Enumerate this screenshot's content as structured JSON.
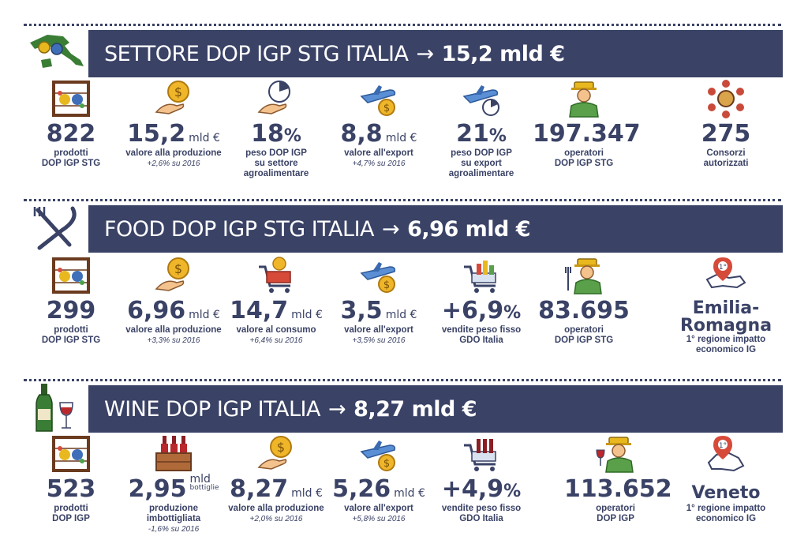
{
  "sections": [
    {
      "id": "settore",
      "title": "SETTORE DOP IGP STG ITALIA",
      "arrow": "→",
      "total": "15,2 mld €",
      "icon": "italy-map-icon",
      "items": [
        {
          "icon": "abacus-icon",
          "value": "822",
          "unit": "",
          "label": "prodotti",
          "label2": "DOP IGP STG",
          "label3": "",
          "sub": ""
        },
        {
          "icon": "coin-hand-icon",
          "value": "15,2",
          "unit": "mld €",
          "label": "valore alla produzione",
          "label2": "",
          "label3": "",
          "sub": "+2,6% su 2016"
        },
        {
          "icon": "pie-hand-icon",
          "value": "18",
          "unit": "%",
          "label": "peso DOP IGP",
          "label2": "su settore",
          "label3": "agroalimentare",
          "sub": ""
        },
        {
          "icon": "plane-coin-icon",
          "value": "8,8",
          "unit": "mld €",
          "label": "valore all'export",
          "label2": "",
          "label3": "",
          "sub": "+4,7% su 2016"
        },
        {
          "icon": "plane-pie-icon",
          "value": "21",
          "unit": "%",
          "label": "peso DOP IGP",
          "label2": "su export",
          "label3": "agroalimentare",
          "sub": ""
        },
        {
          "icon": "farmer-icon",
          "value": "197.347",
          "unit": "",
          "label": "operatori",
          "label2": "DOP IGP STG",
          "label3": "",
          "sub": ""
        },
        {
          "icon": "consortium-icon",
          "value": "275",
          "unit": "",
          "label": "Consorzi",
          "label2": "autorizzati",
          "label3": "",
          "sub": ""
        }
      ]
    },
    {
      "id": "food",
      "title": "FOOD DOP IGP STG ITALIA",
      "arrow": "→",
      "total": "6,96 mld €",
      "icon": "fork-knife-icon",
      "items": [
        {
          "icon": "abacus-icon",
          "value": "299",
          "unit": "",
          "label": "prodotti",
          "label2": "DOP IGP STG",
          "label3": "",
          "sub": ""
        },
        {
          "icon": "coin-hand-icon",
          "value": "6,96",
          "unit": "mld €",
          "label": "valore alla produzione",
          "label2": "",
          "label3": "",
          "sub": "+3,3% su 2016"
        },
        {
          "icon": "cart-coin-icon",
          "value": "14,7",
          "unit": "mld €",
          "label": "valore al consumo",
          "label2": "",
          "label3": "",
          "sub": "+6,4% su 2016"
        },
        {
          "icon": "plane-coin-icon",
          "value": "3,5",
          "unit": "mld €",
          "label": "valore all'export",
          "label2": "",
          "label3": "",
          "sub": "+3,5% su 2016"
        },
        {
          "icon": "grocery-cart-icon",
          "value": "+6,9",
          "unit": "%",
          "label": "vendite peso fisso",
          "label2": "GDO Italia",
          "label3": "",
          "sub": ""
        },
        {
          "icon": "farmer-fork-icon",
          "value": "83.695",
          "unit": "",
          "label": "operatori",
          "label2": "DOP IGP STG",
          "label3": "",
          "sub": ""
        },
        {
          "icon": "region-pin-icon",
          "value": "Emilia-",
          "value2": "Romagna",
          "unit": "",
          "label": "1° regione impatto",
          "label2": "economico IG",
          "label3": "",
          "sub": ""
        }
      ]
    },
    {
      "id": "wine",
      "title": "WINE DOP IGP ITALIA",
      "arrow": "→",
      "total": "8,27 mld €",
      "icon": "wine-bottle-glass-icon",
      "items": [
        {
          "icon": "abacus-icon",
          "value": "523",
          "unit": "",
          "label": "prodotti",
          "label2": "DOP IGP",
          "label3": "",
          "sub": ""
        },
        {
          "icon": "wine-crate-icon",
          "value": "2,95",
          "unitA": "mld",
          "unitB": "bottiglie",
          "unit": "",
          "label": "produzione",
          "label2": "imbottigliata",
          "label3": "",
          "sub": "-1,6% su 2016"
        },
        {
          "icon": "coin-hand-icon",
          "value": "8,27",
          "unit": "mld €",
          "label": "valore alla produzione",
          "label2": "",
          "label3": "",
          "sub": "+2,0% su 2016"
        },
        {
          "icon": "plane-coin-icon",
          "value": "5,26",
          "unit": "mld €",
          "label": "valore all'export",
          "label2": "",
          "label3": "",
          "sub": "+5,8% su 2016"
        },
        {
          "icon": "wine-cart-icon",
          "value": "+4,9",
          "unit": "%",
          "label": "vendite peso fisso",
          "label2": "GDO Italia",
          "label3": "",
          "sub": ""
        },
        {
          "icon": "farmer-wine-icon",
          "value": "113.652",
          "unit": "",
          "label": "operatori",
          "label2": "DOP IGP",
          "label3": "",
          "sub": ""
        },
        {
          "icon": "region-pin-icon",
          "value": "Veneto",
          "unit": "",
          "label": "1° regione impatto",
          "label2": "economico IG",
          "label3": "",
          "sub": ""
        }
      ]
    }
  ]
}
